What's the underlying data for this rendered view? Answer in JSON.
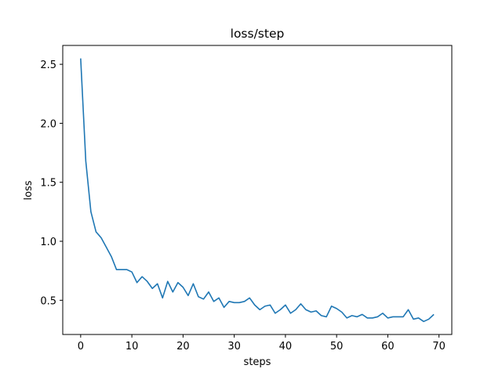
{
  "chart_data": {
    "type": "line",
    "title": "loss/step",
    "xlabel": "steps",
    "ylabel": "loss",
    "xlim": [
      -3.5,
      72.5
    ],
    "ylim": [
      0.21,
      2.66
    ],
    "xticks": [
      0,
      10,
      20,
      30,
      40,
      50,
      60,
      70
    ],
    "xtick_labels": [
      "0",
      "10",
      "20",
      "30",
      "40",
      "50",
      "60",
      "70"
    ],
    "yticks": [
      0.5,
      1.0,
      1.5,
      2.0,
      2.5
    ],
    "ytick_labels": [
      "0.5",
      "1.0",
      "1.5",
      "2.0",
      "2.5"
    ],
    "grid": false,
    "legend": null,
    "series": [
      {
        "color": "#1f77b4",
        "x": [
          0,
          1,
          2,
          3,
          4,
          5,
          6,
          7,
          8,
          9,
          10,
          11,
          12,
          13,
          14,
          15,
          16,
          17,
          18,
          19,
          20,
          21,
          22,
          23,
          24,
          25,
          26,
          27,
          28,
          29,
          30,
          31,
          32,
          33,
          34,
          35,
          36,
          37,
          38,
          39,
          40,
          41,
          42,
          43,
          44,
          45,
          46,
          47,
          48,
          49,
          50,
          51,
          52,
          53,
          54,
          55,
          56,
          57,
          58,
          59,
          60,
          61,
          62,
          63,
          64,
          65,
          66,
          67,
          68,
          69
        ],
        "y": [
          2.55,
          1.68,
          1.25,
          1.08,
          1.03,
          0.95,
          0.87,
          0.76,
          0.76,
          0.76,
          0.74,
          0.65,
          0.7,
          0.66,
          0.6,
          0.64,
          0.52,
          0.66,
          0.57,
          0.65,
          0.61,
          0.54,
          0.64,
          0.53,
          0.51,
          0.57,
          0.49,
          0.52,
          0.44,
          0.49,
          0.48,
          0.48,
          0.49,
          0.52,
          0.46,
          0.42,
          0.45,
          0.46,
          0.39,
          0.42,
          0.46,
          0.39,
          0.42,
          0.47,
          0.42,
          0.4,
          0.41,
          0.37,
          0.36,
          0.45,
          0.43,
          0.4,
          0.35,
          0.37,
          0.36,
          0.38,
          0.35,
          0.35,
          0.36,
          0.39,
          0.35,
          0.36,
          0.36,
          0.36,
          0.42,
          0.34,
          0.35,
          0.32,
          0.34,
          0.38
        ]
      }
    ]
  }
}
